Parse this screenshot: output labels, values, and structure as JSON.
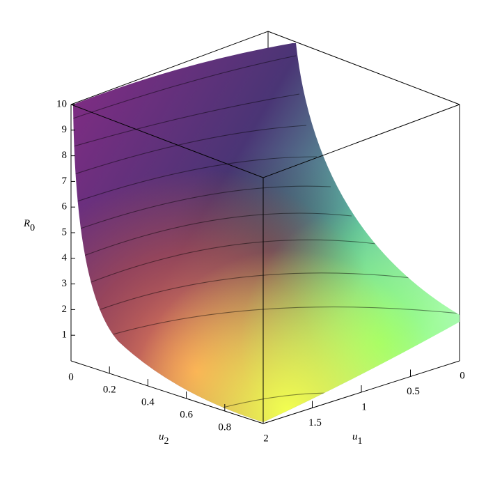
{
  "chart_data": {
    "type": "surface3d",
    "zlabel": {
      "base": "R",
      "sub": "0"
    },
    "u1label": {
      "base": "u",
      "sub": "1"
    },
    "u2label": {
      "base": "u",
      "sub": "2"
    },
    "zlim": [
      0,
      10
    ],
    "zticks": [
      1,
      2,
      3,
      4,
      5,
      6,
      7,
      8,
      9,
      10
    ],
    "u1lim": [
      0,
      2
    ],
    "u1ticks": [
      0,
      0.5,
      1,
      1.5,
      2
    ],
    "u2lim": [
      0,
      1
    ],
    "u2ticks": [
      0,
      0.2,
      0.4,
      0.6,
      0.8
    ]
  }
}
